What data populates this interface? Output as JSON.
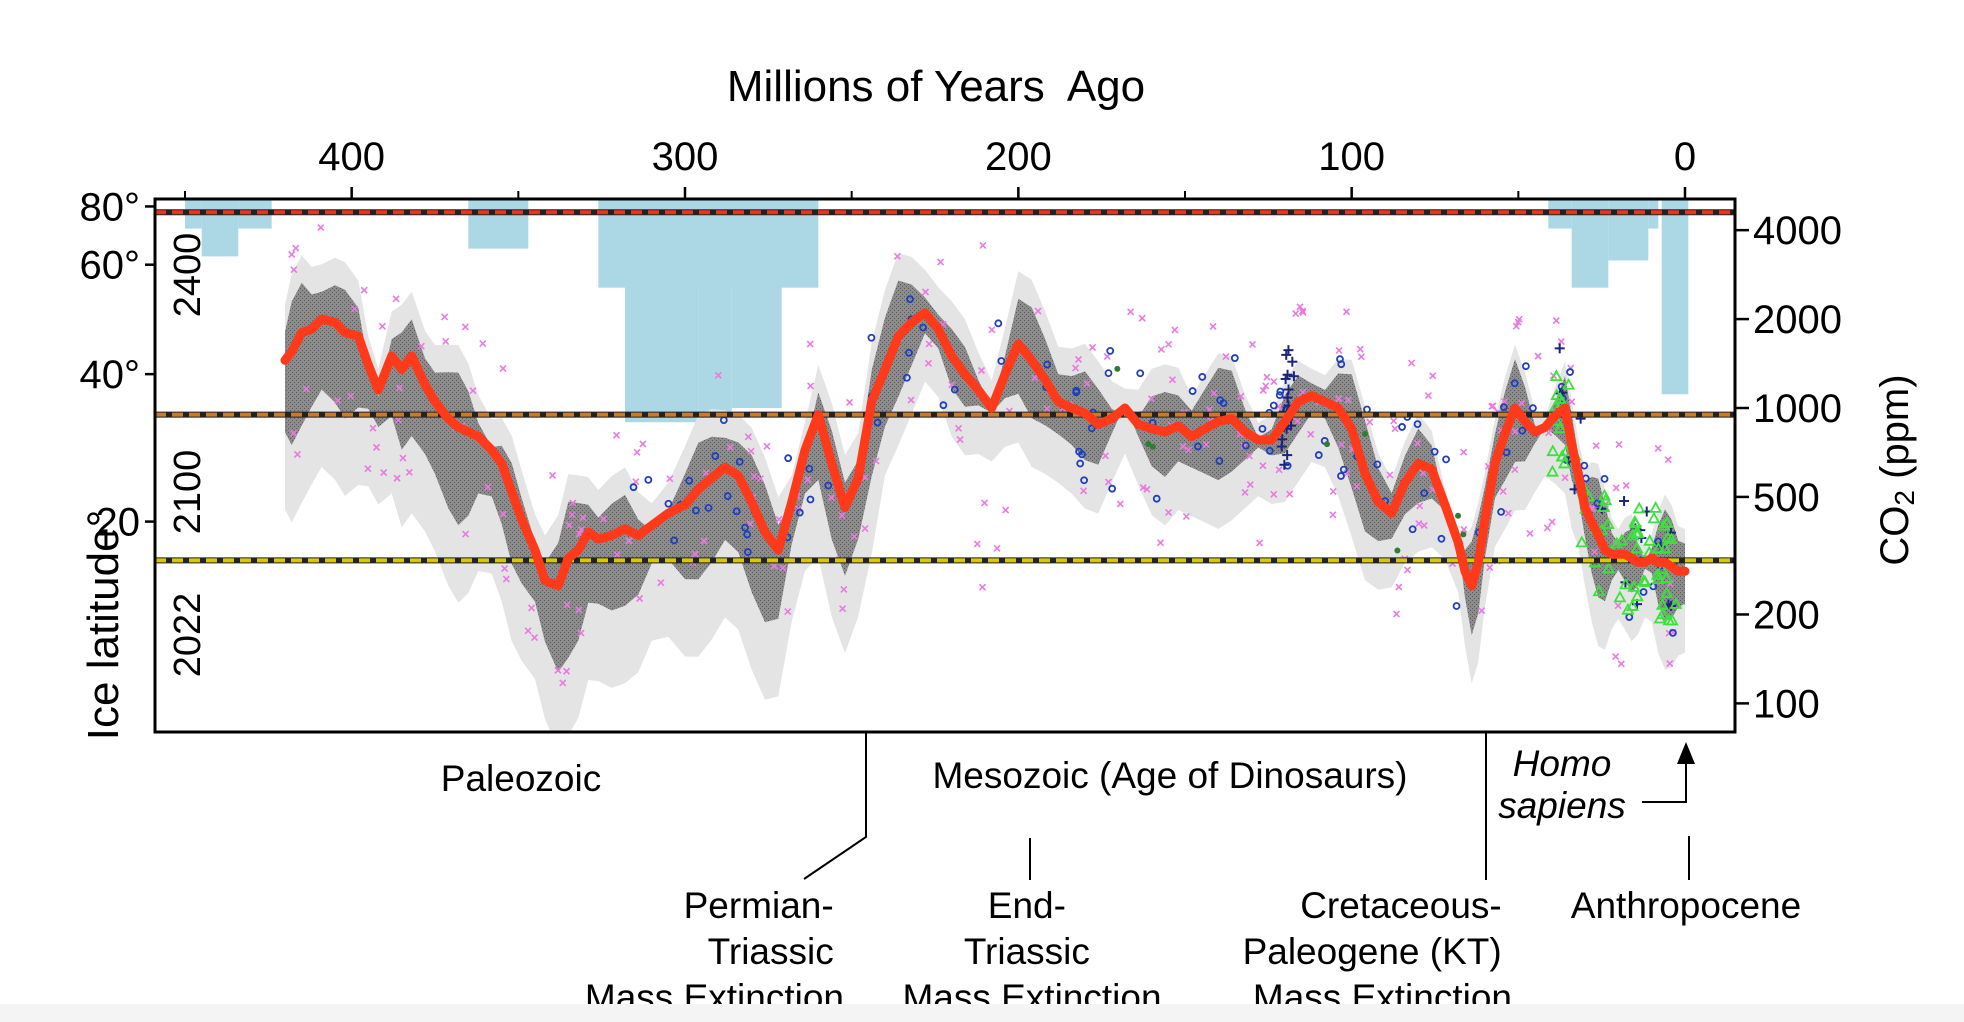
{
  "chart_data": {
    "type": "line",
    "title": "Millions of Years  Ago",
    "x_reversed": true,
    "xlim": [
      459,
      -15
    ],
    "x_ticks": [
      400,
      300,
      200,
      100,
      0
    ],
    "left_axis": {
      "label": "Ice latitude°",
      "scale": "sine",
      "ylim": [
        -5,
        90
      ],
      "ticks": [
        {
          "value": 80,
          "label": "80°"
        },
        {
          "value": 60,
          "label": "60°"
        },
        {
          "value": 40,
          "label": "40°"
        },
        {
          "value": 20,
          "label": "20"
        }
      ]
    },
    "right_axis": {
      "label_main": "CO",
      "label_sub": "2",
      "label_tail": " (ppm)",
      "scale": "log",
      "ylim": [
        80,
        5100
      ],
      "ticks": [
        {
          "value": 4000,
          "label": "4000"
        },
        {
          "value": 2000,
          "label": "2000"
        },
        {
          "value": 1000,
          "label": "1000"
        },
        {
          "value": 500,
          "label": "500"
        },
        {
          "value": 200,
          "label": "200"
        },
        {
          "value": 100,
          "label": "100"
        }
      ]
    },
    "scenarios": [
      {
        "label": "2400",
        "co2": 4600,
        "color": "#e8351f"
      },
      {
        "label": "2100",
        "co2": 950,
        "color": "#c97a2c"
      },
      {
        "label": "2022",
        "co2": 305,
        "color": "#d8c800"
      }
    ],
    "colors": {
      "co2_curve": "#ff3a1a",
      "inner_band": "#8a8a8a",
      "outer_band": "#e4e4e4",
      "ice": "#acd8e6",
      "proxy_cross": "#e87ae0",
      "proxy_circle": "#1f3fbf",
      "proxy_plus": "#1a237e",
      "proxy_triangle": "#3ee03e",
      "proxy_dot": "#2e7d32"
    },
    "ice_extent": [
      {
        "from": 445,
        "to": 434,
        "latitude": 62
      },
      {
        "from": 450,
        "to": 445,
        "latitude": 70
      },
      {
        "from": 434,
        "to": 424,
        "latitude": 70
      },
      {
        "from": 365,
        "to": 347,
        "latitude": 64
      },
      {
        "from": 326,
        "to": 260,
        "latitude": 55
      },
      {
        "from": 318,
        "to": 296,
        "latitude": 33
      },
      {
        "from": 296,
        "to": 286,
        "latitude": 28
      },
      {
        "from": 286,
        "to": 271,
        "latitude": 35
      },
      {
        "from": 41,
        "to": 34,
        "latitude": 70
      },
      {
        "from": 34,
        "to": 23,
        "latitude": 55
      },
      {
        "from": 23,
        "to": 11,
        "latitude": 61
      },
      {
        "from": 11,
        "to": 8,
        "latitude": 70
      },
      {
        "from": 7,
        "to": -1,
        "latitude": 37
      }
    ],
    "series": [
      {
        "name": "",
        "x": [
          420,
          418,
          415,
          412,
          409,
          405,
          402,
          398,
          395,
          392,
          388,
          385,
          382,
          378,
          375,
          371,
          368,
          365,
          362,
          358,
          355,
          352,
          349,
          345,
          342,
          338,
          335,
          332,
          329,
          326,
          322,
          318,
          314,
          310,
          305,
          300,
          296,
          292,
          288,
          284,
          280,
          276,
          272,
          268,
          264,
          260,
          256,
          252,
          248,
          244,
          240,
          236,
          232,
          228,
          224,
          220,
          216,
          212,
          208,
          204,
          200,
          196,
          192,
          188,
          184,
          180,
          176,
          172,
          168,
          164,
          160,
          156,
          152,
          148,
          144,
          140,
          136,
          132,
          128,
          124,
          120,
          116,
          112,
          108,
          104,
          100,
          96,
          92,
          88,
          84,
          80,
          76,
          72,
          68,
          66,
          64,
          62,
          60,
          57,
          54,
          51,
          48,
          45,
          42,
          39,
          36,
          34,
          32,
          30,
          28,
          26,
          24,
          22,
          20,
          18,
          16,
          14,
          12,
          10,
          8,
          6,
          4,
          2,
          0
        ],
        "y": [
          1450,
          1550,
          1800,
          1850,
          2000,
          1950,
          1800,
          1750,
          1400,
          1150,
          1500,
          1350,
          1500,
          1200,
          1050,
          920,
          860,
          830,
          800,
          720,
          650,
          520,
          420,
          330,
          260,
          250,
          310,
          330,
          380,
          360,
          370,
          390,
          370,
          400,
          440,
          470,
          530,
          580,
          630,
          590,
          480,
          380,
          330,
          480,
          720,
          950,
          650,
          460,
          580,
          1050,
          1350,
          1750,
          1950,
          2100,
          1850,
          1500,
          1300,
          1150,
          1000,
          1300,
          1650,
          1450,
          1250,
          1050,
          1000,
          960,
          880,
          920,
          1000,
          880,
          850,
          830,
          870,
          800,
          850,
          900,
          920,
          830,
          780,
          780,
          900,
          1050,
          1100,
          1050,
          1000,
          850,
          600,
          480,
          440,
          560,
          650,
          620,
          470,
          350,
          280,
          250,
          300,
          420,
          650,
          820,
          1000,
          900,
          830,
          860,
          940,
          1000,
          750,
          600,
          460,
          410,
          370,
          330,
          320,
          320,
          320,
          310,
          300,
          300,
          310,
          300,
          300,
          290,
          280,
          280
        ]
      }
    ]
  },
  "labels": {
    "paleozoic": "Paleozoic",
    "mesozoic": "Mesozoic (Age of Dinosaurs)",
    "homo_1": "Homo",
    "homo_2": "sapiens",
    "anthropocene": "Anthropocene",
    "pt": [
      "Permian-",
      "Triassic",
      "Mass Extinction"
    ],
    "et": [
      "End-",
      "Triassic",
      "Mass Extinction"
    ],
    "kt": [
      "Cretaceous-",
      "Paleogene (KT)",
      "Mass Extinction"
    ]
  }
}
